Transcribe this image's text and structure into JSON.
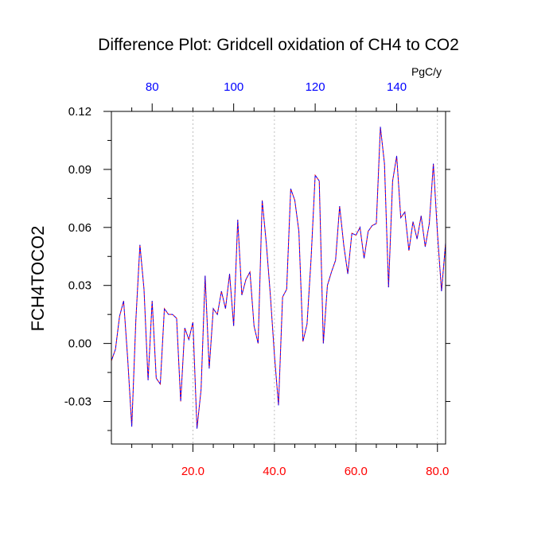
{
  "chart_data": {
    "type": "line",
    "title": "Difference Plot: Gridcell oxidation of CH4 to CO2",
    "ylabel": "FCH4TOCO2",
    "top_axis_unit": "PgC/y",
    "xlim": [
      0,
      82
    ],
    "ylim": [
      -0.052,
      0.12
    ],
    "bottom_axis": {
      "ticks": [
        20,
        40,
        60,
        80
      ],
      "labels": [
        "20.0",
        "40.0",
        "60.0",
        "80.0"
      ],
      "color": "#ff0000"
    },
    "top_axis": {
      "ticks": [
        80,
        100,
        120,
        140
      ],
      "labels": [
        "80",
        "100",
        "120",
        "140"
      ],
      "color": "#0000ff",
      "range": [
        70,
        152
      ]
    },
    "y_axis": {
      "ticks": [
        -0.03,
        0.0,
        0.03,
        0.06,
        0.09,
        0.12
      ],
      "labels": [
        "-0.03",
        "0.00",
        "0.03",
        "0.06",
        "0.09",
        "0.12"
      ]
    },
    "grid": "vertical dashed at bottom-axis ticks",
    "series": [
      {
        "name": "FCH4TOCO2 difference",
        "color_a": "#ff0000",
        "color_b": "#0000ff",
        "x": [
          0,
          1,
          2,
          3,
          4,
          5,
          6,
          7,
          8,
          9,
          10,
          11,
          12,
          13,
          14,
          15,
          16,
          17,
          18,
          19,
          20,
          21,
          22,
          23,
          24,
          25,
          26,
          27,
          28,
          29,
          30,
          31,
          32,
          33,
          34,
          35,
          36,
          37,
          38,
          39,
          40,
          41,
          42,
          43,
          44,
          45,
          46,
          47,
          48,
          49,
          50,
          51,
          52,
          53,
          54,
          55,
          56,
          57,
          58,
          59,
          60,
          61,
          62,
          63,
          64,
          65,
          66,
          67,
          68,
          69,
          70,
          71,
          72,
          73,
          74,
          75,
          76,
          77,
          78,
          79,
          80,
          81,
          82
        ],
        "values": [
          -0.009,
          -0.003,
          0.014,
          0.022,
          -0.008,
          -0.043,
          0.012,
          0.051,
          0.028,
          -0.019,
          0.022,
          -0.018,
          -0.021,
          0.018,
          0.015,
          0.015,
          0.013,
          -0.03,
          0.008,
          0.002,
          0.011,
          -0.044,
          -0.024,
          0.035,
          -0.013,
          0.018,
          0.015,
          0.027,
          0.018,
          0.036,
          0.009,
          0.064,
          0.025,
          0.033,
          0.037,
          0.009,
          0.0,
          0.074,
          0.052,
          0.025,
          -0.006,
          -0.032,
          0.024,
          0.028,
          0.08,
          0.074,
          0.058,
          0.001,
          0.01,
          0.044,
          0.087,
          0.084,
          0.0,
          0.03,
          0.037,
          0.043,
          0.071,
          0.051,
          0.036,
          0.057,
          0.056,
          0.06,
          0.044,
          0.058,
          0.061,
          0.062,
          0.112,
          0.093,
          0.029,
          0.084,
          0.097,
          0.065,
          0.068,
          0.048,
          0.063,
          0.054,
          0.066,
          0.05,
          0.062,
          0.093,
          0.057,
          0.027,
          0.052
        ]
      }
    ]
  }
}
